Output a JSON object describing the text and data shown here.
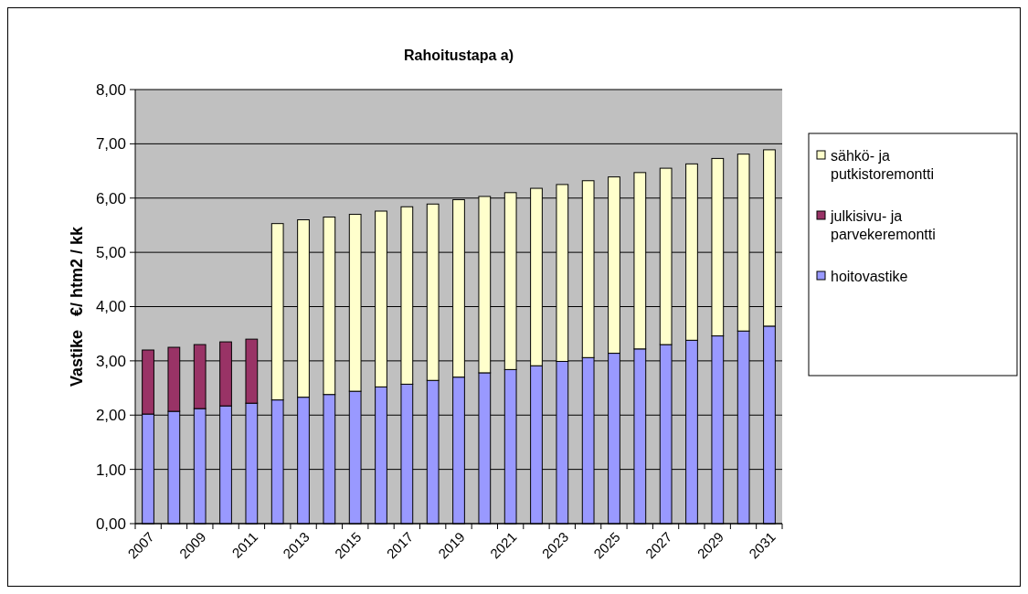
{
  "chart_data": {
    "type": "bar",
    "title": "Rahoitustapa a)",
    "ylabel": "Vastike   €/ htm2 / kk",
    "stacked": true,
    "grid": "y",
    "legend": "right",
    "categories": [
      "2007",
      null,
      "2009",
      null,
      "2011",
      null,
      "2013",
      null,
      "2015",
      null,
      "2017",
      null,
      "2019",
      null,
      "2021",
      null,
      "2023",
      null,
      "2025",
      null,
      "2027",
      null,
      "2029",
      null,
      "2031"
    ],
    "ylim": [
      0,
      8
    ],
    "yticks": [
      {
        "value": 0,
        "label": "0,00"
      },
      {
        "value": 1,
        "label": "1,00"
      },
      {
        "value": 2,
        "label": "2,00"
      },
      {
        "value": 3,
        "label": "3,00"
      },
      {
        "value": 4,
        "label": "4,00"
      },
      {
        "value": 5,
        "label": "5,00"
      },
      {
        "value": 6,
        "label": "6,00"
      },
      {
        "value": 7,
        "label": "7,00"
      },
      {
        "value": 8,
        "label": "8,00"
      }
    ],
    "series": [
      {
        "name": "hoitovastike",
        "color": "#9999ff",
        "values": [
          2.02,
          2.07,
          2.12,
          2.17,
          2.22,
          2.28,
          2.33,
          2.38,
          2.44,
          2.52,
          2.57,
          2.64,
          2.7,
          2.78,
          2.84,
          2.91,
          2.99,
          3.06,
          3.14,
          3.22,
          3.3,
          3.38,
          3.46,
          3.55,
          3.64
        ]
      },
      {
        "name": "julkisivu- ja parvekeremontti",
        "color": "#993366",
        "values": [
          1.18,
          1.18,
          1.18,
          1.18,
          1.18,
          null,
          null,
          null,
          null,
          null,
          null,
          null,
          null,
          null,
          null,
          null,
          null,
          null,
          null,
          null,
          null,
          null,
          null,
          null,
          null
        ]
      },
      {
        "name": "sähkö- ja putkistoremontti",
        "color": "#ffffcc",
        "values": [
          null,
          null,
          null,
          null,
          null,
          3.25,
          3.27,
          3.27,
          3.26,
          3.24,
          3.27,
          3.25,
          3.27,
          3.25,
          3.26,
          3.27,
          3.26,
          3.26,
          3.25,
          3.25,
          3.25,
          3.25,
          3.27,
          3.26,
          3.25
        ]
      }
    ]
  }
}
